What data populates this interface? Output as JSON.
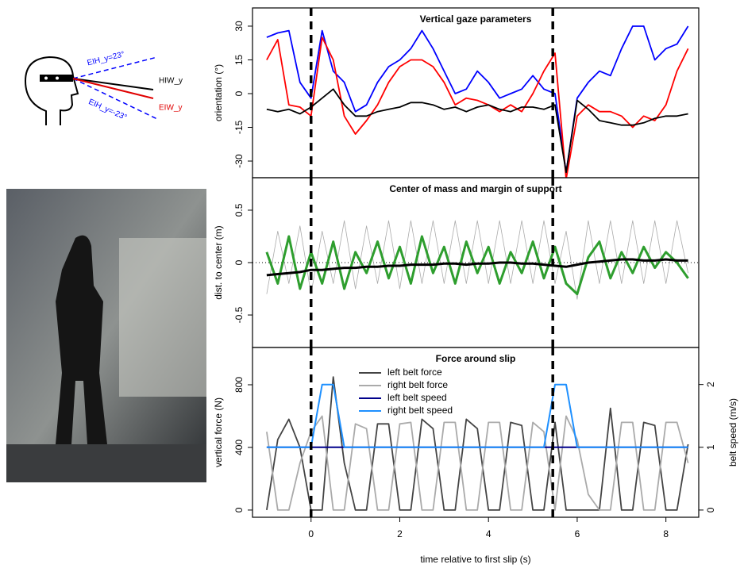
{
  "diagram": {
    "labels": [
      "EIH_y=23°",
      "HIW_y",
      "EIW_y",
      "EIH_y=-23°"
    ]
  },
  "chart_data": [
    {
      "type": "line",
      "title": "Vertical gaze parameters",
      "ylabel": "orientation (°)",
      "x": [
        -1,
        -0.75,
        -0.5,
        -0.25,
        0,
        0.25,
        0.5,
        0.75,
        1,
        1.25,
        1.5,
        1.75,
        2,
        2.25,
        2.5,
        2.75,
        3,
        3.25,
        3.5,
        3.75,
        4,
        4.25,
        4.5,
        4.75,
        5,
        5.25,
        5.5,
        5.75,
        6,
        6.25,
        6.5,
        6.75,
        7,
        7.25,
        7.5,
        7.75,
        8,
        8.25,
        8.5
      ],
      "xlim": [
        -1.32,
        8.74
      ],
      "ylim": [
        -37.4,
        38.1
      ],
      "yticks": [
        -30,
        -15,
        0,
        15,
        30
      ],
      "slip_times": [
        0,
        5.45
      ],
      "series": [
        {
          "color": "#0000ff",
          "values": [
            25,
            27,
            28,
            5,
            -2,
            28,
            10,
            5,
            -8,
            -5,
            5,
            12,
            15,
            20,
            28,
            20,
            10,
            0,
            2,
            10,
            5,
            -2,
            0,
            2,
            8,
            2,
            0,
            -35,
            -2,
            5,
            10,
            8,
            20,
            30,
            30,
            15,
            20,
            22,
            30
          ]
        },
        {
          "color": "#ff0000",
          "values": [
            15,
            24,
            -5,
            -6,
            -10,
            25,
            15,
            -10,
            -18,
            -12,
            -5,
            5,
            12,
            15,
            15,
            12,
            5,
            -5,
            -2,
            -3,
            -5,
            -8,
            -5,
            -8,
            0,
            10,
            18,
            -38,
            -10,
            -5,
            -8,
            -8,
            -10,
            -15,
            -10,
            -12,
            -5,
            10,
            20
          ]
        },
        {
          "color": "#000000",
          "values": [
            -7,
            -8,
            -7,
            -9,
            -6,
            -2,
            2,
            -5,
            -10,
            -10,
            -8,
            -7,
            -6,
            -4,
            -4,
            -5,
            -7,
            -6,
            -8,
            -6,
            -5,
            -7,
            -8,
            -6,
            -6,
            -7,
            -5,
            -35,
            -3,
            -7,
            -12,
            -13,
            -14,
            -14,
            -13,
            -11,
            -10,
            -10,
            -9
          ]
        }
      ]
    },
    {
      "type": "line",
      "title": "Center of mass and margin of support",
      "ylabel": "dist. to center (m)",
      "x": [
        -1,
        -0.75,
        -0.5,
        -0.25,
        0,
        0.25,
        0.5,
        0.75,
        1,
        1.25,
        1.5,
        1.75,
        2,
        2.25,
        2.5,
        2.75,
        3,
        3.25,
        3.5,
        3.75,
        4,
        4.25,
        4.5,
        4.75,
        5,
        5.25,
        5.5,
        5.75,
        6,
        6.25,
        6.5,
        6.75,
        7,
        7.25,
        7.5,
        7.75,
        8,
        8.25,
        8.5
      ],
      "xlim": [
        -1.32,
        8.74
      ],
      "ylim": [
        -0.81,
        0.81
      ],
      "yticks": [
        -0.5,
        0,
        0.5
      ],
      "slip_times": [
        0,
        5.45
      ],
      "reference_line": 0,
      "series": [
        {
          "color": "#aaaaaa",
          "values": [
            -0.3,
            0.3,
            -0.2,
            0.35,
            -0.3,
            0.3,
            -0.2,
            0.4,
            -0.25,
            0.35,
            -0.2,
            0.4,
            -0.25,
            0.4,
            -0.2,
            0.4,
            -0.2,
            0.4,
            -0.2,
            0.4,
            -0.2,
            0.4,
            -0.2,
            0.4,
            -0.2,
            0.4,
            -0.2,
            0.3,
            -0.35,
            0.4,
            -0.2,
            0.4,
            -0.2,
            0.4,
            -0.2,
            0.4,
            -0.2,
            0.4,
            -0.1
          ]
        },
        {
          "color": "#2e9e2e",
          "values": [
            0.1,
            -0.2,
            0.25,
            -0.25,
            0.1,
            -0.2,
            0.2,
            -0.25,
            0.1,
            -0.1,
            0.2,
            -0.15,
            0.15,
            -0.2,
            0.25,
            -0.1,
            0.15,
            -0.2,
            0.2,
            -0.1,
            0.15,
            -0.2,
            0.1,
            -0.1,
            0.2,
            -0.15,
            0.15,
            -0.2,
            -0.3,
            0.05,
            0.2,
            -0.15,
            0.1,
            -0.1,
            0.15,
            -0.05,
            0.1,
            0,
            -0.15
          ]
        },
        {
          "color": "#000000",
          "values": [
            -0.12,
            -0.11,
            -0.1,
            -0.09,
            -0.07,
            -0.07,
            -0.06,
            -0.05,
            -0.05,
            -0.04,
            -0.04,
            -0.03,
            -0.03,
            -0.02,
            -0.02,
            -0.02,
            -0.01,
            -0.01,
            -0.02,
            -0.01,
            -0.01,
            0,
            0,
            -0.01,
            -0.01,
            -0.02,
            -0.03,
            -0.04,
            -0.02,
            0,
            0.01,
            0.02,
            0.03,
            0.03,
            0.02,
            0.02,
            0.03,
            0.02,
            0.02
          ]
        }
      ]
    },
    {
      "type": "line",
      "title": "Force around slip",
      "ylabel": "vertical force (N)",
      "y2label": "belt speed (m/s)",
      "xlabel": "time relative to first slip (s)",
      "x": [
        -1,
        -0.75,
        -0.5,
        -0.25,
        0,
        0.25,
        0.5,
        0.75,
        1,
        1.25,
        1.5,
        1.75,
        2,
        2.25,
        2.5,
        2.75,
        3,
        3.25,
        3.5,
        3.75,
        4,
        4.25,
        4.5,
        4.75,
        5,
        5.25,
        5.5,
        5.75,
        6,
        6.25,
        6.5,
        6.75,
        7,
        7.25,
        7.5,
        7.75,
        8,
        8.25,
        8.5
      ],
      "xlim": [
        -1.32,
        8.74
      ],
      "xticks": [
        0,
        2,
        4,
        6,
        8
      ],
      "ylim": [
        -46,
        1038
      ],
      "yticks": [
        0,
        400,
        800
      ],
      "y2lim": [
        -0.115,
        2.59
      ],
      "y2ticks": [
        0,
        1,
        2
      ],
      "slip_times": [
        0,
        5.45
      ],
      "legend": "top",
      "series": [
        {
          "name": "left belt force",
          "color": "#444444",
          "values": [
            0,
            450,
            580,
            400,
            0,
            0,
            850,
            300,
            0,
            0,
            550,
            550,
            0,
            0,
            580,
            520,
            0,
            0,
            580,
            520,
            0,
            0,
            560,
            540,
            0,
            0,
            560,
            0,
            0,
            0,
            0,
            650,
            0,
            0,
            560,
            540,
            0,
            0,
            420
          ]
        },
        {
          "name": "right belt force",
          "color": "#aaaaaa",
          "values": [
            500,
            0,
            0,
            300,
            500,
            600,
            0,
            0,
            550,
            520,
            0,
            0,
            550,
            560,
            0,
            0,
            560,
            560,
            0,
            0,
            560,
            560,
            0,
            0,
            560,
            500,
            0,
            600,
            450,
            100,
            0,
            0,
            560,
            560,
            0,
            0,
            560,
            560,
            300
          ]
        },
        {
          "name": "left belt speed",
          "color": "#00008b",
          "axis": "y2",
          "values": [
            1,
            1,
            1,
            1,
            1,
            1,
            1,
            1,
            1,
            1,
            1,
            1,
            1,
            1,
            1,
            1,
            1,
            1,
            1,
            1,
            1,
            1,
            1,
            1,
            1,
            1,
            1,
            1,
            1,
            1,
            1,
            1,
            1,
            1,
            1,
            1,
            1,
            1,
            1
          ]
        },
        {
          "name": "right belt speed",
          "color": "#1e90ff",
          "axis": "y2",
          "values": [
            1,
            1,
            1,
            1,
            1,
            2,
            2,
            1,
            1,
            1,
            1,
            1,
            1,
            1,
            1,
            1,
            1,
            1,
            1,
            1,
            1,
            1,
            1,
            1,
            1,
            1,
            2,
            2,
            1,
            1,
            1,
            1,
            1,
            1,
            1,
            1,
            1,
            1,
            1
          ]
        }
      ]
    }
  ]
}
